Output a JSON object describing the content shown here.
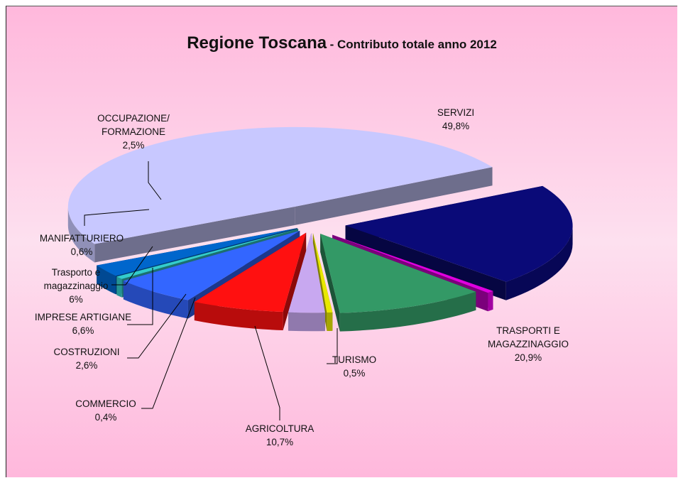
{
  "chart_data": {
    "type": "pie",
    "title": "Regione Toscana",
    "subtitle": "- Contributo totale  anno 2012",
    "slices": [
      {
        "label": "SERVIZI",
        "value": 49.8,
        "display": "49,8%",
        "color": "#c8c8ff"
      },
      {
        "label": "TRASPORTI E MAGAZZINAGGIO",
        "value": 20.9,
        "display": "20,9%",
        "color": "#0a0a78"
      },
      {
        "label": "TURISMO",
        "value": 0.5,
        "display": "0,5%",
        "color": "#e000e0"
      },
      {
        "label": "AGRICOLTURA",
        "value": 10.7,
        "display": "10,7%",
        "color": "#339966"
      },
      {
        "label": "COMMERCIO",
        "value": 0.4,
        "display": "0,4%",
        "color": "#e8e800"
      },
      {
        "label": "COSTRUZIONI",
        "value": 2.6,
        "display": "2,6%",
        "color": "#c8a8f0"
      },
      {
        "label": "IMPRESE ARTIGIANE",
        "value": 6.6,
        "display": "6,6%",
        "color": "#ff1010"
      },
      {
        "label": "Trasporto e magazzinaggio",
        "value": 6,
        "display": "6%",
        "color": "#3366ff"
      },
      {
        "label": "MANIFATTURIERO",
        "value": 0.6,
        "display": "0,6%",
        "color": "#33cccc"
      },
      {
        "label": "OCCUPAZIONE/ FORMAZIONE",
        "value": 2.5,
        "display": "2,5%",
        "color": "#0066cc"
      }
    ]
  },
  "labels": [
    {
      "lines": [
        "SERVIZI"
      ],
      "pct": "49,8%"
    },
    {
      "lines": [
        "TRASPORTI E",
        "MAGAZZINAGGIO"
      ],
      "pct": "20,9%"
    },
    {
      "lines": [
        "TURISMO"
      ],
      "pct": "0,5%"
    },
    {
      "lines": [
        "AGRICOLTURA"
      ],
      "pct": "10,7%"
    },
    {
      "lines": [
        "COMMERCIO"
      ],
      "pct": "0,4%"
    },
    {
      "lines": [
        "COSTRUZIONI"
      ],
      "pct": "2,6%"
    },
    {
      "lines": [
        "IMPRESE ARTIGIANE"
      ],
      "pct": "6,6%"
    },
    {
      "lines": [
        "Trasporto e",
        "magazzinaggio"
      ],
      "pct": "6%"
    },
    {
      "lines": [
        "MANIFATTURIERO"
      ],
      "pct": "0,6%"
    },
    {
      "lines": [
        "OCCUPAZIONE/",
        "FORMAZIONE"
      ],
      "pct": "2,5%"
    }
  ]
}
